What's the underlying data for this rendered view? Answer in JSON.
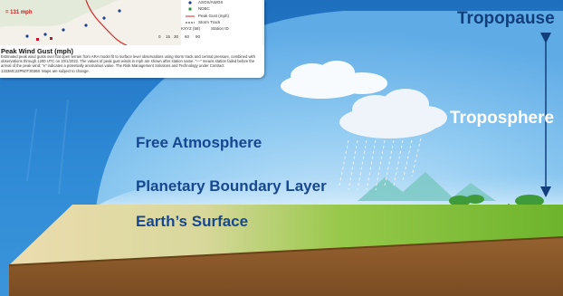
{
  "labels": {
    "free_atmosphere": "Free Atmosphere",
    "planetary_boundary_layer": "Planetary Boundary Layer",
    "earths_surface": "Earth’s Surface",
    "tropopause": "Tropopause",
    "troposphere": "Troposphere"
  },
  "inset": {
    "title": "Peak Wind Gust (mph)",
    "badge": "= 131 mph",
    "note": "Estimated peak wind gusts over flat open terrain from ARA model fit to surface level observations using storm track and central pressure, combined with observations through 1200 UTC on 10/1/2022. The values of peak gust winds in mph are shown after station name. “—” means station failed before the arrival of the peak wind; “e” indicates a potentially anomalous value. The Risk Management Solutions and Technology under Contract 1333MC22PN0T30368. Maps are subject to change.",
    "legend": [
      "ASOS/AWOS",
      "NDBC",
      "Peak Gust (mph)",
      "Storm Track",
      "Station ID"
    ],
    "scale_ticks": [
      "0",
      "15",
      "30",
      "60",
      "90"
    ],
    "station_code": "KXYZ (58)"
  },
  "colors": {
    "sky_top": "#1f73c2",
    "sky_dome": "#7fc1ef",
    "surface_sand": "#e8d8a8",
    "surface_grass": "#7bbf2f",
    "soil": "#8b5a2b",
    "label_dark_blue": "#17478f",
    "arrow": "#123e7c"
  }
}
